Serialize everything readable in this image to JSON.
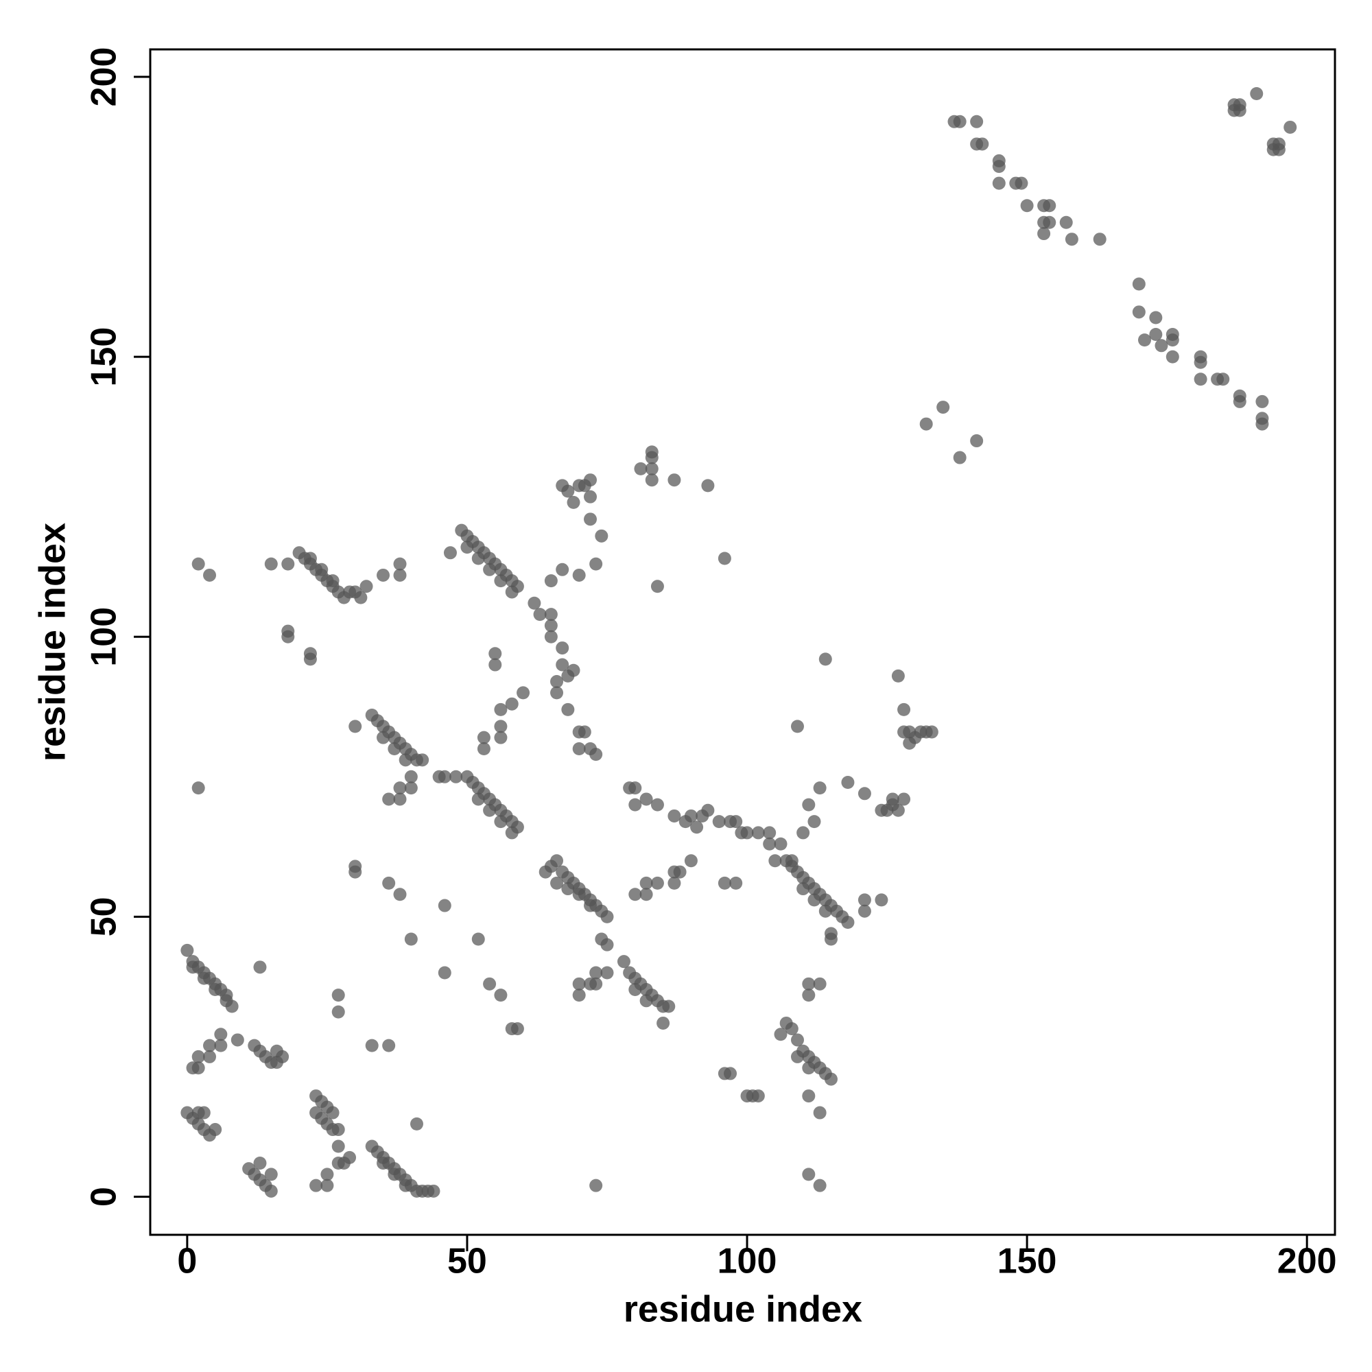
{
  "chart_data": {
    "type": "scatter",
    "x_label": "residue index",
    "y_label": "residue index",
    "xlim": [
      -6.6,
      205
    ],
    "ylim": [
      -6.8,
      204.9
    ],
    "xticks": [
      0,
      50,
      100,
      150,
      200
    ],
    "yticks": [
      0,
      50,
      100,
      150,
      200
    ],
    "series": [
      {
        "color": "#555555",
        "alpha": 0.72,
        "x": [
          0,
          1,
          2,
          3,
          4,
          5,
          6,
          7,
          8,
          1,
          3,
          5,
          7,
          0,
          1,
          2,
          3,
          4,
          5,
          2,
          3,
          11,
          12,
          13,
          14,
          15,
          15,
          13,
          12,
          13,
          14,
          15,
          16,
          17,
          16,
          23,
          24,
          25,
          26,
          23,
          24,
          25,
          26,
          27,
          33,
          34,
          35,
          36,
          37,
          38,
          39,
          40,
          41,
          42,
          43,
          44,
          35,
          37,
          39,
          20,
          21,
          22,
          23,
          24,
          25,
          26,
          27,
          28,
          29,
          30,
          31,
          22,
          24,
          26,
          49,
          50,
          51,
          52,
          53,
          54,
          55,
          56,
          57,
          58,
          59,
          50,
          52,
          54,
          56,
          58,
          33,
          34,
          35,
          36,
          37,
          38,
          39,
          40,
          41,
          35,
          37,
          39,
          50,
          51,
          52,
          53,
          54,
          55,
          56,
          57,
          58,
          59,
          52,
          54,
          56,
          58,
          64,
          65,
          66,
          67,
          68,
          69,
          70,
          71,
          72,
          73,
          74,
          75,
          66,
          68,
          70,
          72,
          78,
          79,
          80,
          81,
          82,
          83,
          84,
          85,
          86,
          80,
          82,
          107,
          108,
          109,
          110,
          111,
          112,
          113,
          114,
          115,
          116,
          117,
          118,
          110,
          112,
          114,
          106,
          107,
          108,
          109,
          110,
          111,
          112,
          113,
          114,
          115,
          109,
          111,
          137,
          138,
          141,
          141,
          142,
          145,
          145,
          145,
          148,
          149,
          150,
          153,
          154,
          153,
          154,
          157,
          153,
          158,
          163,
          170,
          170,
          171,
          173,
          173,
          174,
          176,
          176,
          176,
          181,
          181,
          181,
          184,
          185,
          188,
          188,
          192,
          192,
          192,
          187,
          188,
          187,
          188,
          191,
          194,
          195,
          194,
          195,
          197,
          2,
          4,
          15,
          18,
          18,
          18,
          22,
          22,
          2,
          30,
          30,
          30,
          36,
          38,
          40,
          46,
          46,
          52,
          54,
          56,
          58,
          59,
          33,
          36,
          27,
          27,
          13,
          9,
          6,
          6,
          4,
          2,
          4,
          1,
          2,
          27,
          28,
          29,
          27,
          23,
          25,
          25,
          41,
          36,
          38,
          38,
          40,
          40,
          42,
          35,
          38,
          38,
          32,
          47,
          45,
          46,
          48,
          55,
          55,
          53,
          56,
          56,
          53,
          56,
          58,
          60,
          62,
          63,
          65,
          67,
          70,
          73,
          65,
          65,
          65,
          67,
          67,
          66,
          66,
          68,
          69,
          68,
          70,
          71,
          70,
          72,
          73,
          67,
          68,
          70,
          71,
          72,
          69,
          72,
          74,
          72,
          81,
          83,
          83,
          83,
          83,
          87,
          93,
          96,
          84,
          79,
          80,
          80,
          82,
          84,
          87,
          89,
          90,
          91,
          92,
          93,
          95,
          97,
          98,
          99,
          100,
          102,
          104,
          104,
          106,
          105,
          108,
          96,
          98,
          90,
          88,
          87,
          87,
          82,
          80,
          82,
          84,
          74,
          75,
          73,
          73,
          72,
          75,
          70,
          70,
          73,
          85,
          96,
          97,
          100,
          101,
          102,
          111,
          113,
          111,
          111,
          113,
          111,
          113,
          114,
          109,
          111,
          112,
          113,
          110,
          118,
          121,
          124,
          125,
          126,
          127,
          128,
          126,
          127,
          128,
          128,
          129,
          130,
          131,
          132,
          133,
          129,
          121,
          121,
          124,
          115,
          115,
          132,
          135,
          138,
          141
        ],
        "values": [
          44,
          42,
          41,
          40,
          39,
          38,
          37,
          36,
          34,
          41,
          39,
          37,
          35,
          15,
          14,
          13,
          12,
          11,
          12,
          15,
          15,
          5,
          4,
          3,
          2,
          1,
          4,
          6,
          27,
          26,
          25,
          24,
          24,
          25,
          26,
          18,
          17,
          16,
          15,
          15,
          14,
          13,
          12,
          12,
          9,
          8,
          7,
          6,
          5,
          4,
          3,
          2,
          1,
          1,
          1,
          1,
          6,
          4,
          2,
          115,
          114,
          113,
          112,
          111,
          110,
          109,
          108,
          107,
          108,
          108,
          107,
          114,
          112,
          110,
          119,
          118,
          117,
          116,
          115,
          114,
          113,
          112,
          111,
          110,
          109,
          116,
          114,
          112,
          110,
          108,
          86,
          85,
          84,
          83,
          82,
          81,
          80,
          79,
          78,
          82,
          80,
          78,
          75,
          74,
          73,
          72,
          71,
          70,
          69,
          68,
          67,
          66,
          71,
          69,
          67,
          65,
          58,
          59,
          60,
          58,
          57,
          56,
          55,
          54,
          53,
          52,
          51,
          50,
          56,
          55,
          54,
          52,
          42,
          40,
          39,
          38,
          37,
          36,
          35,
          34,
          34,
          37,
          35,
          60,
          59,
          58,
          57,
          56,
          55,
          54,
          53,
          52,
          51,
          50,
          49,
          55,
          53,
          51,
          29,
          31,
          30,
          28,
          26,
          25,
          24,
          23,
          22,
          21,
          25,
          23,
          192,
          192,
          192,
          188,
          188,
          185,
          184,
          181,
          181,
          181,
          177,
          177,
          177,
          174,
          174,
          174,
          172,
          171,
          171,
          163,
          158,
          153,
          154,
          157,
          152,
          154,
          153,
          150,
          150,
          149,
          146,
          146,
          146,
          143,
          142,
          142,
          139,
          138,
          195,
          195,
          194,
          194,
          197,
          188,
          188,
          187,
          187,
          191,
          113,
          111,
          113,
          113,
          101,
          100,
          97,
          96,
          73,
          84,
          59,
          58,
          56,
          54,
          46,
          52,
          40,
          46,
          38,
          36,
          30,
          30,
          27,
          27,
          36,
          33,
          41,
          28,
          29,
          27,
          27,
          25,
          25,
          23,
          23,
          9,
          6,
          7,
          6,
          2,
          2,
          4,
          13,
          71,
          71,
          73,
          73,
          75,
          78,
          111,
          111,
          113,
          109,
          115,
          75,
          75,
          75,
          97,
          95,
          82,
          82,
          84,
          80,
          87,
          88,
          90,
          106,
          104,
          110,
          112,
          111,
          113,
          104,
          102,
          100,
          98,
          95,
          92,
          90,
          93,
          94,
          87,
          83,
          83,
          80,
          80,
          79,
          127,
          126,
          127,
          127,
          125,
          124,
          121,
          118,
          128,
          130,
          130,
          133,
          132,
          128,
          128,
          127,
          114,
          109,
          73,
          73,
          70,
          71,
          70,
          68,
          67,
          68,
          66,
          68,
          69,
          67,
          67,
          67,
          65,
          65,
          65,
          65,
          63,
          63,
          60,
          60,
          56,
          56,
          60,
          58,
          58,
          56,
          56,
          54,
          54,
          56,
          46,
          45,
          40,
          38,
          38,
          40,
          38,
          36,
          2,
          31,
          22,
          22,
          18,
          18,
          18,
          38,
          38,
          36,
          18,
          15,
          4,
          2,
          96,
          84,
          70,
          67,
          73,
          65,
          74,
          72,
          69,
          69,
          70,
          69,
          71,
          71,
          93,
          87,
          83,
          83,
          82,
          83,
          83,
          83,
          81,
          53,
          51,
          53,
          47,
          46,
          138,
          141,
          132,
          135
        ]
      }
    ]
  }
}
